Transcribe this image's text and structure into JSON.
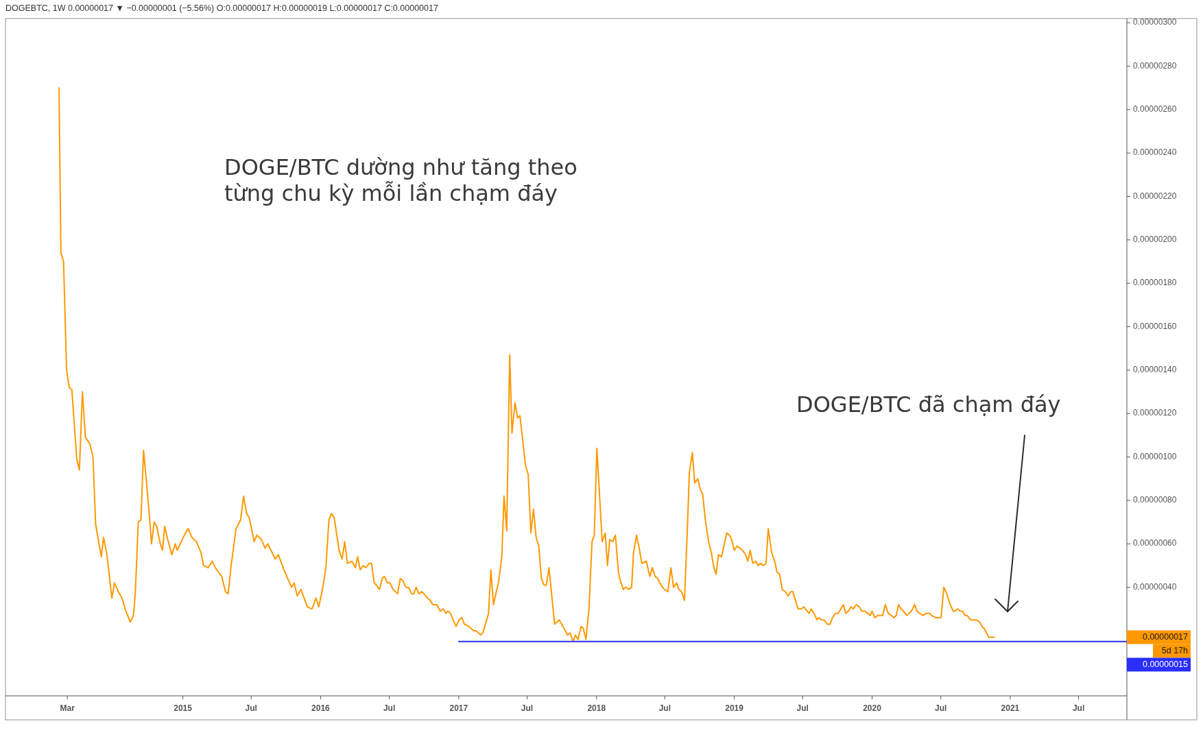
{
  "chart_data": {
    "type": "line",
    "subtitle": "DOGEBTC, 1W 0.00000017 ▼ −0.00000001 (−5.56%) O:0.00000017 H:0.00000019 L:0.00000017 C:0.00000017",
    "xlim": [
      "2013-09-20",
      "2021-11-06"
    ],
    "xticks": [
      {
        "value": "2014-03-01",
        "label": "Mar"
      },
      {
        "value": "2015-01-01",
        "label": "2015"
      },
      {
        "value": "2015-07-01",
        "label": "Jul"
      },
      {
        "value": "2016-01-01",
        "label": "2016"
      },
      {
        "value": "2016-07-01",
        "label": "Jul"
      },
      {
        "value": "2017-01-01",
        "label": "2017"
      },
      {
        "value": "2017-07-01",
        "label": "Jul"
      },
      {
        "value": "2018-01-01",
        "label": "2018"
      },
      {
        "value": "2018-07-01",
        "label": "Jul"
      },
      {
        "value": "2019-01-01",
        "label": "2019"
      },
      {
        "value": "2019-07-01",
        "label": "Jul"
      },
      {
        "value": "2020-01-01",
        "label": "2020"
      },
      {
        "value": "2020-07-01",
        "label": "Jul"
      },
      {
        "value": "2021-01-01",
        "label": "2021"
      },
      {
        "value": "2021-07-01",
        "label": "Jul"
      }
    ],
    "ylim": [
      -1e-07,
      3.01e-06
    ],
    "yticks": [
      {
        "value": 4e-07,
        "label": "0.00000040"
      },
      {
        "value": 6e-07,
        "label": "0.00000060"
      },
      {
        "value": 8e-07,
        "label": "0.00000080"
      },
      {
        "value": 1e-06,
        "label": "0.00000100"
      },
      {
        "value": 1.2e-06,
        "label": "0.00000120"
      },
      {
        "value": 1.4e-06,
        "label": "0.00000140"
      },
      {
        "value": 1.6e-06,
        "label": "0.00000160"
      },
      {
        "value": 1.8e-06,
        "label": "0.00000180"
      },
      {
        "value": 2e-06,
        "label": "0.00000200"
      },
      {
        "value": 2.2e-06,
        "label": "0.00000220"
      },
      {
        "value": 2.4e-06,
        "label": "0.00000240"
      },
      {
        "value": 2.6e-06,
        "label": "0.00000260"
      },
      {
        "value": 2.8e-06,
        "label": "0.00000280"
      },
      {
        "value": 3e-06,
        "label": "0.00000300"
      }
    ],
    "grid": false,
    "marker": "none",
    "line_style": "solid",
    "annotations": [
      "DOGE/BTC dường như tăng theo\ntừng chu kỳ mỗi lần chạm đáy",
      "DOGE/BTC đã chạm đáy",
      "0.00000017",
      "5d 17h",
      "0.00000015"
    ],
    "series": [
      {
        "color": "#ff9800",
        "x": [
          "2014-02-07",
          "2014-02-12",
          "2014-02-19",
          "2014-02-27",
          "2014-03-06",
          "2014-03-13",
          "2014-03-26",
          "2014-04-02",
          "2014-04-10",
          "2014-04-18",
          "2014-04-30",
          "2014-05-08",
          "2014-05-15",
          "2014-05-30",
          "2014-06-05",
          "2014-06-14",
          "2014-06-27",
          "2014-07-04",
          "2014-07-14",
          "2014-07-24",
          "2014-08-03",
          "2014-08-15",
          "2014-08-23",
          "2014-08-28",
          "2014-09-05",
          "2014-09-12",
          "2014-09-19",
          "2014-09-27",
          "2014-10-03",
          "2014-10-10",
          "2014-10-17",
          "2014-10-24",
          "2014-11-01",
          "2014-11-08",
          "2014-11-14",
          "2014-11-22",
          "2014-12-03",
          "2014-12-12",
          "2014-12-17",
          "2014-12-28",
          "2015-01-05",
          "2015-01-15",
          "2015-01-25",
          "2015-02-06",
          "2015-02-18",
          "2015-02-25",
          "2015-03-09",
          "2015-03-20",
          "2015-03-28",
          "2015-04-14",
          "2015-04-24",
          "2015-05-01",
          "2015-05-09",
          "2015-05-22",
          "2015-06-03",
          "2015-06-11",
          "2015-06-19",
          "2015-06-26",
          "2015-07-09",
          "2015-07-16",
          "2015-07-28",
          "2015-08-07",
          "2015-08-14",
          "2015-09-03",
          "2015-09-11",
          "2015-09-26",
          "2015-10-16",
          "2015-10-23",
          "2015-10-31",
          "2015-11-10",
          "2015-11-27",
          "2015-12-09",
          "2015-12-20",
          "2015-12-27",
          "2016-01-06",
          "2016-01-15",
          "2016-01-23",
          "2016-01-30",
          "2016-02-06",
          "2016-02-19",
          "2016-02-27",
          "2016-03-05",
          "2016-03-12",
          "2016-03-24",
          "2016-04-02",
          "2016-04-08",
          "2016-04-15",
          "2016-04-23",
          "2016-04-29",
          "2016-05-09",
          "2016-05-15",
          "2016-05-22",
          "2016-05-28",
          "2016-06-05",
          "2016-06-12",
          "2016-06-18",
          "2016-06-26",
          "2016-07-03",
          "2016-07-11",
          "2016-07-23",
          "2016-07-30",
          "2016-08-06",
          "2016-08-14",
          "2016-08-21",
          "2016-08-29",
          "2016-09-04",
          "2016-09-10",
          "2016-09-17",
          "2016-09-25",
          "2016-10-01",
          "2016-10-10",
          "2016-10-17",
          "2016-10-24",
          "2016-11-04",
          "2016-11-13",
          "2016-11-21",
          "2016-11-28",
          "2016-12-04",
          "2016-12-10",
          "2016-12-17",
          "2016-12-25",
          "2017-01-02",
          "2017-01-09",
          "2017-01-16",
          "2017-01-28",
          "2017-02-09",
          "2017-02-16",
          "2017-02-22",
          "2017-02-28",
          "2017-03-06",
          "2017-03-21",
          "2017-03-27",
          "2017-04-03",
          "2017-04-17",
          "2017-04-25",
          "2017-05-01",
          "2017-05-08",
          "2017-05-16",
          "2017-05-22",
          "2017-05-30",
          "2017-06-06",
          "2017-06-12",
          "2017-06-22",
          "2017-06-27",
          "2017-07-04",
          "2017-07-11",
          "2017-07-18",
          "2017-07-25",
          "2017-08-01",
          "2017-08-08",
          "2017-08-15",
          "2017-08-21",
          "2017-08-28",
          "2017-09-12",
          "2017-09-24",
          "2017-10-04",
          "2017-10-16",
          "2017-10-23",
          "2017-10-31",
          "2017-11-06",
          "2017-11-13",
          "2017-11-21",
          "2017-11-27",
          "2017-12-04",
          "2017-12-12",
          "2017-12-20",
          "2017-12-26",
          "2018-01-02",
          "2018-01-16",
          "2018-01-24",
          "2018-01-30",
          "2018-02-05",
          "2018-02-13",
          "2018-02-20",
          "2018-02-28",
          "2018-03-05",
          "2018-03-13",
          "2018-03-19",
          "2018-03-28",
          "2018-04-04",
          "2018-04-09",
          "2018-04-17",
          "2018-04-24",
          "2018-05-01",
          "2018-05-13",
          "2018-05-22",
          "2018-05-29",
          "2018-06-05",
          "2018-06-12",
          "2018-06-21",
          "2018-06-30",
          "2018-07-09",
          "2018-07-17",
          "2018-07-24",
          "2018-08-01",
          "2018-08-07",
          "2018-08-14",
          "2018-08-22",
          "2018-08-29",
          "2018-09-04",
          "2018-09-12",
          "2018-09-18",
          "2018-09-26",
          "2018-10-03",
          "2018-10-09",
          "2018-10-17",
          "2018-10-25",
          "2018-11-01",
          "2018-11-08",
          "2018-11-14",
          "2018-11-20",
          "2018-11-28",
          "2018-12-12",
          "2018-12-19",
          "2018-12-25",
          "2019-01-01",
          "2019-01-08",
          "2019-01-16",
          "2019-01-23",
          "2019-01-31",
          "2019-02-06",
          "2019-02-12",
          "2019-02-19",
          "2019-02-27",
          "2019-03-05",
          "2019-03-11",
          "2019-03-19",
          "2019-03-26",
          "2019-04-01",
          "2019-04-10",
          "2019-04-18",
          "2019-04-24",
          "2019-05-01",
          "2019-05-08",
          "2019-05-16",
          "2019-05-24",
          "2019-05-31",
          "2019-06-05",
          "2019-06-12",
          "2019-06-19",
          "2019-06-28",
          "2019-07-04",
          "2019-07-13",
          "2019-07-18",
          "2019-07-24",
          "2019-07-31",
          "2019-08-08",
          "2019-08-13",
          "2019-08-20",
          "2019-08-27",
          "2019-09-04",
          "2019-09-12",
          "2019-09-18",
          "2019-09-26",
          "2019-10-03",
          "2019-10-17",
          "2019-10-23",
          "2019-10-30",
          "2019-11-06",
          "2019-11-12",
          "2019-11-20",
          "2019-11-28",
          "2019-12-05",
          "2019-12-13",
          "2019-12-20",
          "2019-12-27",
          "2020-01-01",
          "2020-01-08",
          "2020-01-16",
          "2020-01-29",
          "2020-02-05",
          "2020-02-13",
          "2020-02-21",
          "2020-02-28",
          "2020-03-05",
          "2020-03-11",
          "2020-03-18",
          "2020-03-24",
          "2020-04-02",
          "2020-04-14",
          "2020-04-23",
          "2020-04-29",
          "2020-05-14",
          "2020-05-23",
          "2020-06-02",
          "2020-06-07",
          "2020-06-17",
          "2020-07-02",
          "2020-07-09",
          "2020-07-17",
          "2020-07-26",
          "2020-08-03",
          "2020-08-07",
          "2020-08-15",
          "2020-08-22",
          "2020-08-28",
          "2020-09-03",
          "2020-09-09",
          "2020-09-18",
          "2020-10-03",
          "2020-10-12",
          "2020-10-18",
          "2020-10-24",
          "2020-11-05",
          "2020-11-20"
        ],
        "values": [
          2.7e-06,
          1.94e-06,
          1.9e-06,
          1.4e-06,
          1.32e-06,
          1.31e-06,
          9.9e-07,
          9.4e-07,
          1.3e-06,
          1.09e-06,
          1.06e-06,
          1e-06,
          6.9e-07,
          5.4e-07,
          6.3e-07,
          5.5e-07,
          3.5e-07,
          4.2e-07,
          3.8e-07,
          3.5e-07,
          2.9e-07,
          2.4e-07,
          2.7e-07,
          3.7e-07,
          7e-07,
          7.1e-07,
          1.03e-06,
          8.8e-07,
          7.6e-07,
          6e-07,
          7e-07,
          6.8e-07,
          6.1e-07,
          5.7e-07,
          6.8e-07,
          6.2e-07,
          5.5e-07,
          6e-07,
          5.7e-07,
          6.1e-07,
          6.4e-07,
          6.7e-07,
          6.3e-07,
          6.1e-07,
          5.6e-07,
          5e-07,
          4.9e-07,
          5.2e-07,
          4.9e-07,
          4.5e-07,
          3.8e-07,
          3.7e-07,
          5e-07,
          6.7e-07,
          7.1e-07,
          8.2e-07,
          7.4e-07,
          7.2e-07,
          6.1e-07,
          6.4e-07,
          6.2e-07,
          5.8e-07,
          6e-07,
          5.3e-07,
          5.5e-07,
          4.8e-07,
          4e-07,
          4.2e-07,
          3.6e-07,
          3.9e-07,
          3.1e-07,
          3e-07,
          3.5e-07,
          3.1e-07,
          3.9e-07,
          4.9e-07,
          7.1e-07,
          7.4e-07,
          7.2e-07,
          5.7e-07,
          5.3e-07,
          6.1e-07,
          5.1e-07,
          5.2e-07,
          4.9e-07,
          5.4e-07,
          4.8e-07,
          5e-07,
          4.9e-07,
          5.1e-07,
          5.1e-07,
          4.2e-07,
          4.1e-07,
          3.9e-07,
          4.4e-07,
          4.5e-07,
          4.2e-07,
          4.2e-07,
          3.9e-07,
          3.7e-07,
          4.4e-07,
          4.3e-07,
          4e-07,
          4e-07,
          3.7e-07,
          3.7e-07,
          4e-07,
          3.7e-07,
          3.8e-07,
          3.7e-07,
          3.5e-07,
          3.4e-07,
          3.2e-07,
          3.2e-07,
          2.9e-07,
          3e-07,
          2.8e-07,
          2.9e-07,
          2.8e-07,
          2.5e-07,
          2.2e-07,
          2.5e-07,
          2.6e-07,
          2.3e-07,
          2.2e-07,
          2e-07,
          2e-07,
          1.9e-07,
          1.8e-07,
          1.9e-07,
          2.8e-07,
          4.8e-07,
          3.2e-07,
          4.3e-07,
          5.4e-07,
          8.2e-07,
          6.6e-07,
          1.47e-06,
          1.11e-06,
          1.25e-06,
          1.18e-06,
          1.19e-06,
          1.04e-06,
          9.6e-07,
          9.2e-07,
          6.5e-07,
          7.6e-07,
          6.3e-07,
          5.9e-07,
          4.4e-07,
          4.1e-07,
          4.1e-07,
          4.9e-07,
          2.3e-07,
          2.5e-07,
          2.2e-07,
          1.8e-07,
          1.9e-07,
          1.5e-07,
          1.8e-07,
          1.6e-07,
          2.2e-07,
          2.1e-07,
          1.6e-07,
          3e-07,
          6.1e-07,
          6.4e-07,
          1.04e-06,
          6.1e-07,
          6.5e-07,
          5e-07,
          6.2e-07,
          6.1e-07,
          6.4e-07,
          4.7e-07,
          4.3e-07,
          3.9e-07,
          4e-07,
          3.9e-07,
          4e-07,
          5.6e-07,
          6.4e-07,
          5.8e-07,
          5.1e-07,
          5.2e-07,
          4.5e-07,
          4.9e-07,
          4.5e-07,
          4.4e-07,
          4.1e-07,
          3.9e-07,
          3.8e-07,
          4.9e-07,
          4e-07,
          4.2e-07,
          3.9e-07,
          3.8e-07,
          3.4e-07,
          6.4e-07,
          9.3e-07,
          1.02e-06,
          8.8e-07,
          9e-07,
          8.5e-07,
          8.3e-07,
          7e-07,
          6.1e-07,
          5.6e-07,
          4.9e-07,
          4.6e-07,
          5.5e-07,
          5.4e-07,
          6.5e-07,
          6.4e-07,
          6.2e-07,
          5.7e-07,
          5.9e-07,
          5.8e-07,
          5.7e-07,
          5.5e-07,
          5.2e-07,
          5.7e-07,
          5.1e-07,
          5.2e-07,
          5e-07,
          5.1e-07,
          5e-07,
          5.1e-07,
          6.7e-07,
          5.6e-07,
          5.2e-07,
          4.7e-07,
          4.6e-07,
          3.9e-07,
          3.8e-07,
          3.6e-07,
          3.8e-07,
          3.8e-07,
          3.4e-07,
          3e-07,
          3e-07,
          3.1e-07,
          2.9e-07,
          2.8e-07,
          3e-07,
          2.8e-07,
          2.5e-07,
          2.6e-07,
          2.5e-07,
          2.5e-07,
          2.3e-07,
          2.3e-07,
          2.6e-07,
          2.8e-07,
          2.8e-07,
          3.2e-07,
          2.8e-07,
          2.9e-07,
          3.1e-07,
          3e-07,
          3.2e-07,
          3.1e-07,
          2.9e-07,
          2.9e-07,
          2.8e-07,
          2.7e-07,
          2.9e-07,
          2.6e-07,
          2.7e-07,
          2.7e-07,
          3.2e-07,
          2.8e-07,
          2.7e-07,
          2.6e-07,
          2.7e-07,
          3.2e-07,
          3e-07,
          2.9e-07,
          2.7e-07,
          2.9e-07,
          3.2e-07,
          2.9e-07,
          2.7e-07,
          2.8e-07,
          2.8e-07,
          2.7e-07,
          2.6e-07,
          2.6e-07,
          4e-07,
          3.7e-07,
          3.2e-07,
          2.9e-07,
          2.9e-07,
          3e-07,
          2.9e-07,
          2.9e-07,
          2.7e-07,
          2.7e-07,
          2.5e-07,
          2.5e-07,
          2.4e-07,
          2.2e-07,
          2.1e-07,
          1.7e-07,
          1.7e-07
        ]
      },
      {
        "type": "line",
        "color": "#2a2eff",
        "x": [
          "2017-01-01",
          "2021-11-06"
        ],
        "values": [
          1.5e-07,
          1.5e-07
        ]
      }
    ]
  }
}
